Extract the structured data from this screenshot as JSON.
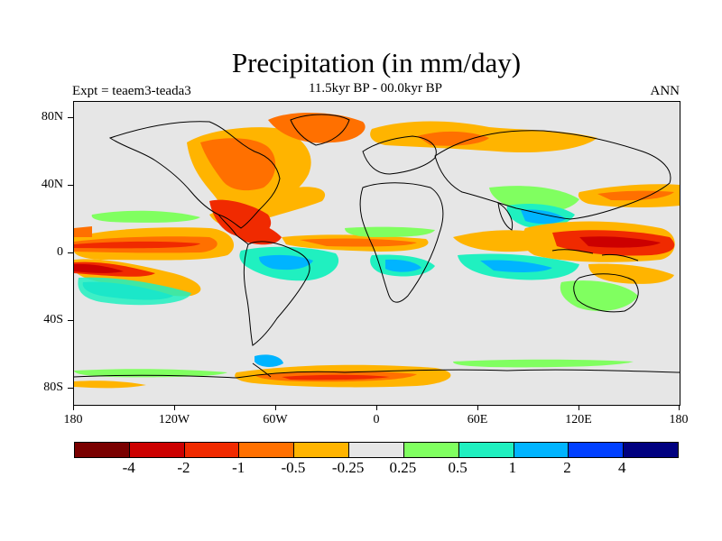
{
  "title": "Precipitation (in mm/day)",
  "subtitle": "11.5kyr BP - 00.0kyr BP",
  "experiment_label": "Expt = teaem3-teada3",
  "season_label": "ANN",
  "y_axis_ticks": [
    "80N",
    "40N",
    "0",
    "40S",
    "80S"
  ],
  "x_axis_ticks": [
    "180",
    "120W",
    "60W",
    "0",
    "60E",
    "120E",
    "180"
  ],
  "colorbar": {
    "colors": [
      "#7a0000",
      "#cc0000",
      "#f02a00",
      "#ff7000",
      "#ffb400",
      "#e6e6e6",
      "#80ff60",
      "#20f0c0",
      "#00b4ff",
      "#0040ff",
      "#000080"
    ],
    "labels": [
      "-4",
      "-2",
      "-1",
      "-0.5",
      "-0.25",
      "0.25",
      "0.5",
      "1",
      "2",
      "4"
    ]
  },
  "legend_colors": {
    "strong_dry": "#cc0000",
    "dry": "#f02a00",
    "moderate_dry": "#ff7000",
    "light_dry": "#ffb400",
    "neutral": "#e6e6e6",
    "light_wet": "#80ff60",
    "moderate_wet": "#20f0c0",
    "wet": "#00b4ff",
    "very_wet": "#0040ff"
  }
}
